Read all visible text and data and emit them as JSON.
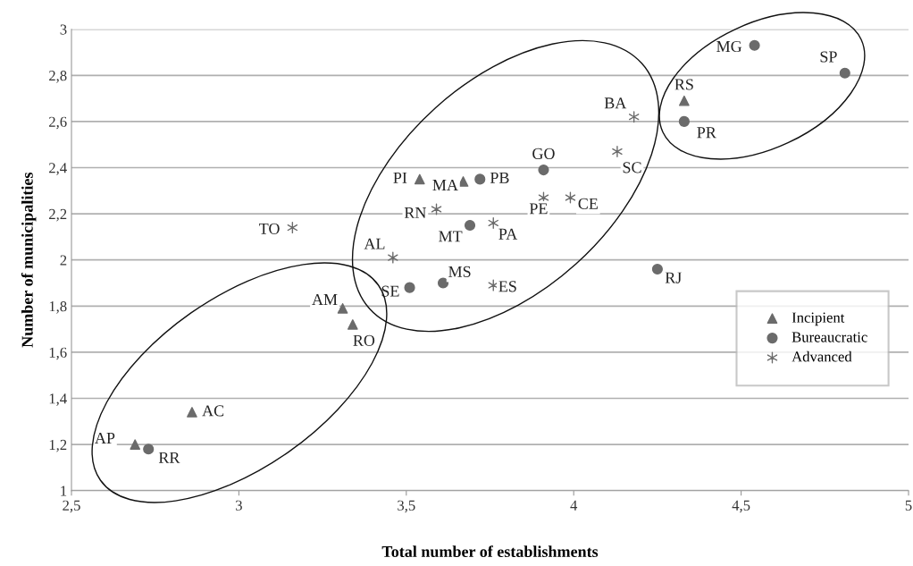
{
  "chart_data": {
    "type": "scatter",
    "xlabel": "Total number of establishments",
    "ylabel": "Number of municipalities",
    "xlim": [
      2.5,
      5
    ],
    "ylim": [
      1,
      3
    ],
    "xticks": [
      {
        "value": 2.5,
        "label": "2,5"
      },
      3,
      {
        "value": 3.5,
        "label": "3,5"
      },
      4,
      {
        "value": 4.5,
        "label": "4,5"
      },
      5
    ],
    "yticks": [
      1,
      {
        "value": 1.2,
        "label": "1,2"
      },
      {
        "value": 1.4,
        "label": "1,4"
      },
      {
        "value": 1.6,
        "label": "1,6"
      },
      {
        "value": 1.8,
        "label": "1,8"
      },
      2,
      {
        "value": 2.2,
        "label": "2,2"
      },
      {
        "value": 2.4,
        "label": "2,4"
      },
      {
        "value": 2.6,
        "label": "2,6"
      },
      {
        "value": 2.8,
        "label": "2,8"
      },
      3
    ],
    "grid": "y",
    "legend": "right",
    "series": [
      {
        "name": "Incipient",
        "color": "#6b6b6b",
        "marker": "triangle",
        "x": [
          2.69,
          2.86,
          3.31,
          3.34,
          3.54,
          3.67,
          4.33
        ],
        "values": [
          1.2,
          1.34,
          1.79,
          1.72,
          2.35,
          2.34,
          2.69
        ]
      },
      {
        "name": "Bureaucratic",
        "color": "#6b6b6b",
        "marker": "circle",
        "x": [
          2.73,
          3.51,
          3.61,
          3.69,
          3.72,
          3.91,
          4.25,
          4.33,
          4.54,
          4.81
        ],
        "values": [
          1.18,
          1.88,
          1.9,
          2.15,
          2.35,
          2.39,
          1.96,
          2.6,
          2.93,
          2.81
        ]
      },
      {
        "name": "Advanced",
        "color": "#6b6b6b",
        "marker": "cross",
        "x": [
          3.16,
          3.46,
          3.59,
          3.76,
          3.76,
          3.91,
          3.99,
          4.13,
          4.18
        ],
        "values": [
          2.14,
          2.01,
          2.22,
          2.16,
          1.89,
          2.27,
          2.27,
          2.47,
          2.62
        ]
      }
    ],
    "annotations": [
      {
        "text": "AP",
        "x": 2.69,
        "y": 1.2
      },
      {
        "text": "AC",
        "x": 2.86,
        "y": 1.34
      },
      {
        "text": "AM",
        "x": 3.31,
        "y": 1.79
      },
      {
        "text": "RO",
        "x": 3.34,
        "y": 1.72
      },
      {
        "text": "PI",
        "x": 3.54,
        "y": 2.35
      },
      {
        "text": "MA",
        "x": 3.67,
        "y": 2.34
      },
      {
        "text": "RS",
        "x": 4.33,
        "y": 2.69
      },
      {
        "text": "RR",
        "x": 2.73,
        "y": 1.18
      },
      {
        "text": "SE",
        "x": 3.51,
        "y": 1.88
      },
      {
        "text": "MS",
        "x": 3.61,
        "y": 1.9
      },
      {
        "text": "MT",
        "x": 3.69,
        "y": 2.15
      },
      {
        "text": "PB",
        "x": 3.72,
        "y": 2.35
      },
      {
        "text": "GO",
        "x": 3.91,
        "y": 2.39
      },
      {
        "text": "RJ",
        "x": 4.25,
        "y": 1.96
      },
      {
        "text": "PR",
        "x": 4.33,
        "y": 2.6
      },
      {
        "text": "MG",
        "x": 4.54,
        "y": 2.93
      },
      {
        "text": "SP",
        "x": 4.81,
        "y": 2.81
      },
      {
        "text": "TO",
        "x": 3.16,
        "y": 2.14
      },
      {
        "text": "AL",
        "x": 3.46,
        "y": 2.01
      },
      {
        "text": "RN",
        "x": 3.59,
        "y": 2.22
      },
      {
        "text": "PA",
        "x": 3.76,
        "y": 2.16
      },
      {
        "text": "ES",
        "x": 3.76,
        "y": 1.89
      },
      {
        "text": "PE",
        "x": 3.91,
        "y": 2.27
      },
      {
        "text": "CE",
        "x": 3.99,
        "y": 2.27
      },
      {
        "text": "SC",
        "x": 4.13,
        "y": 2.47
      },
      {
        "text": "BA",
        "x": 4.18,
        "y": 2.62
      }
    ]
  }
}
